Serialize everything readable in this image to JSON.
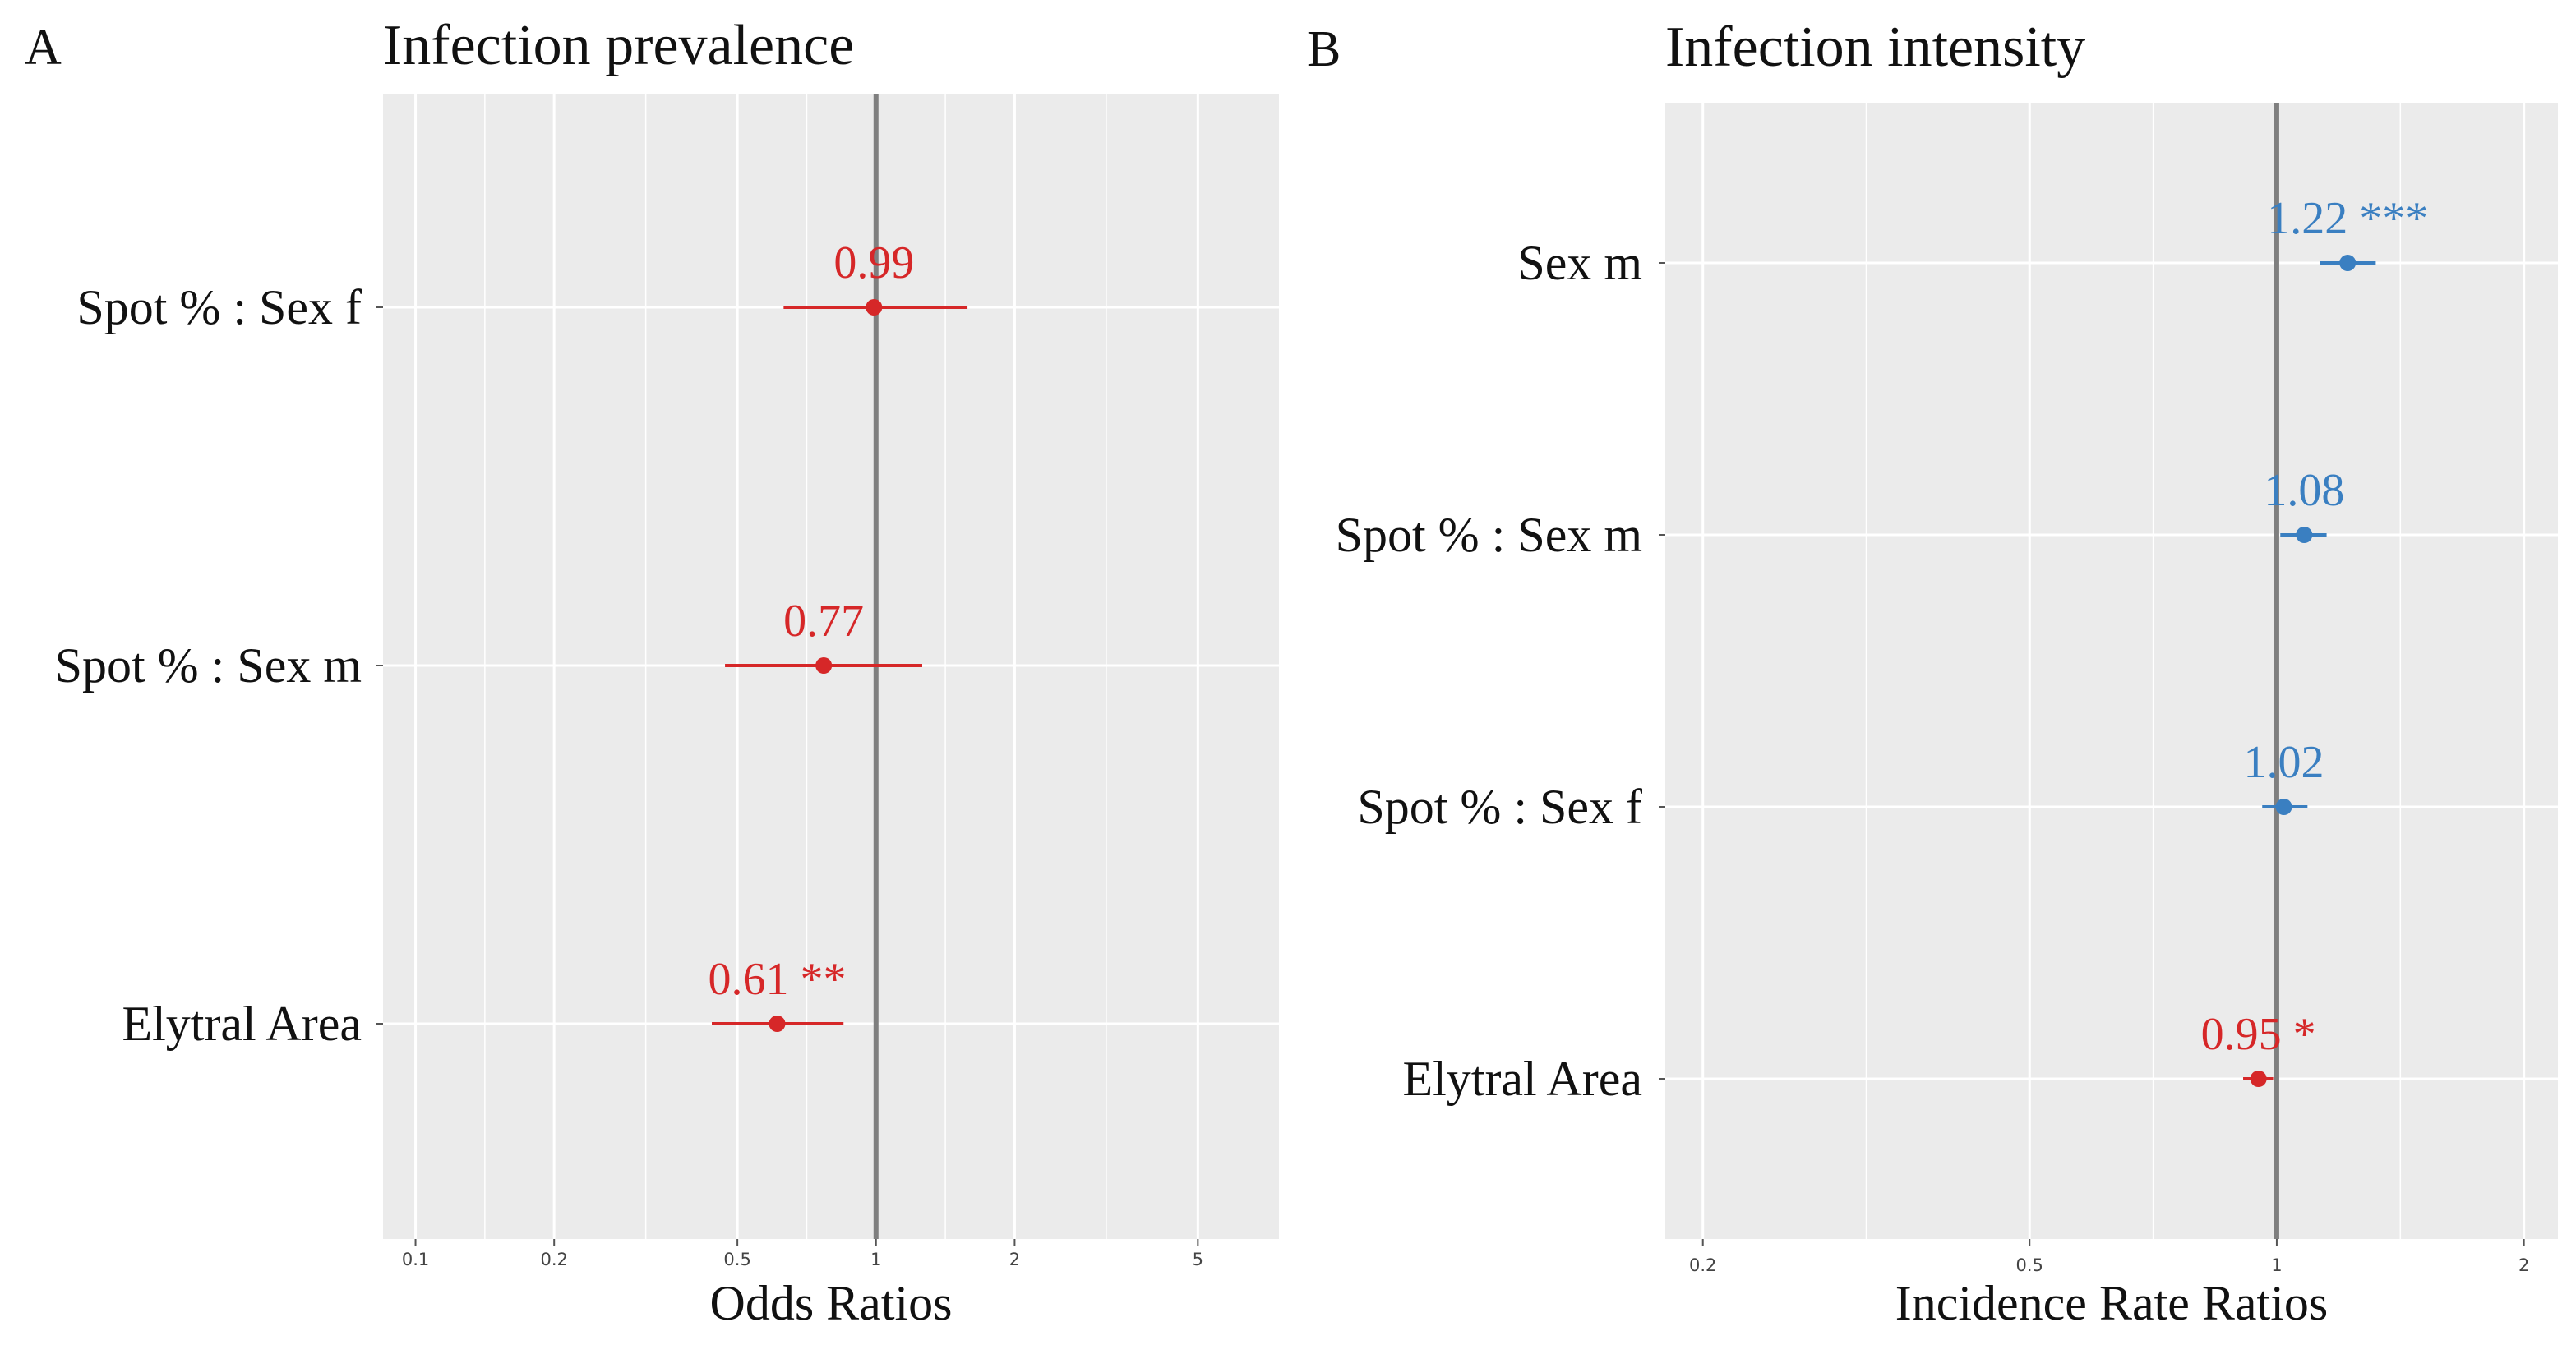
{
  "chart_data": [
    {
      "type": "forest",
      "panel_label": "A",
      "title": "Infection prevalence",
      "xlabel": "Odds Ratios",
      "x_scale": "log",
      "xlim": [
        0.085,
        7.5
      ],
      "x_ticks": [
        0.1,
        0.2,
        0.5,
        1,
        2,
        5
      ],
      "x_tick_labels": [
        "0.1",
        "0.2",
        "0.5",
        "1",
        "2",
        "5"
      ],
      "reference_line": 1,
      "grid": true,
      "terms": [
        {
          "label": "Spot % : Sex f",
          "estimate": 0.99,
          "ci_low": 0.63,
          "ci_high": 1.58,
          "value_label": "0.99",
          "significance": "",
          "color": "#d62728"
        },
        {
          "label": "Spot % : Sex m",
          "estimate": 0.77,
          "ci_low": 0.47,
          "ci_high": 1.26,
          "value_label": "0.77",
          "significance": "",
          "color": "#d62728"
        },
        {
          "label": "Elytral Area",
          "estimate": 0.61,
          "ci_low": 0.44,
          "ci_high": 0.85,
          "value_label": "0.61",
          "significance": "**",
          "color": "#d62728"
        }
      ]
    },
    {
      "type": "forest",
      "panel_label": "B",
      "title": "Infection intensity",
      "xlabel": "Incidence Rate Ratios",
      "x_scale": "log",
      "xlim": [
        0.18,
        2.2
      ],
      "x_ticks": [
        0.2,
        0.5,
        1,
        2
      ],
      "x_tick_labels": [
        "0.2",
        "0.5",
        "1",
        "2"
      ],
      "reference_line": 1,
      "grid": true,
      "terms": [
        {
          "label": "Sex m",
          "estimate": 1.22,
          "ci_low": 1.13,
          "ci_high": 1.32,
          "value_label": "1.22",
          "significance": "***",
          "color": "#3a7fc1"
        },
        {
          "label": "Spot % : Sex m",
          "estimate": 1.08,
          "ci_low": 1.01,
          "ci_high": 1.15,
          "value_label": "1.08",
          "significance": "",
          "color": "#3a7fc1"
        },
        {
          "label": "Spot % : Sex f",
          "estimate": 1.02,
          "ci_low": 0.96,
          "ci_high": 1.09,
          "value_label": "1.02",
          "significance": "",
          "color": "#3a7fc1"
        },
        {
          "label": "Elytral Area",
          "estimate": 0.95,
          "ci_low": 0.91,
          "ci_high": 0.99,
          "value_label": "0.95",
          "significance": "*",
          "color": "#d62728"
        }
      ]
    }
  ],
  "style": {
    "panel_background": "#ebebeb",
    "grid_color": "#ffffff",
    "reference_line_color": "#7f7f7f",
    "red": "#d62728",
    "blue": "#3a7fc1"
  }
}
